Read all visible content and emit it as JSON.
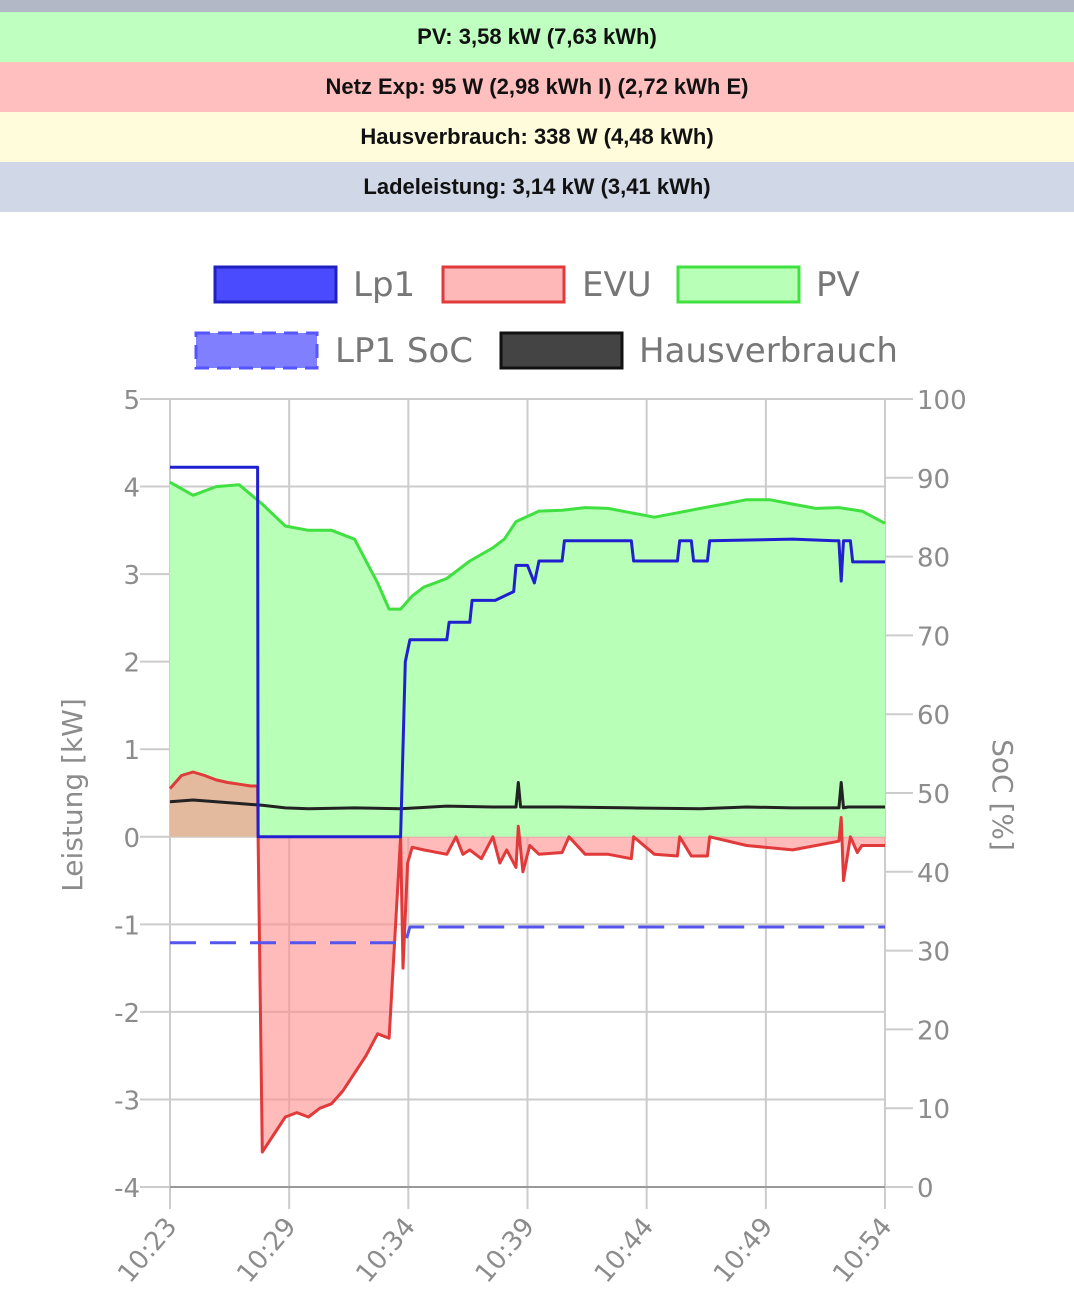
{
  "status": {
    "pv": {
      "text": "PV: 3,58 kW (7,63 kWh)",
      "color": "#bfffbf"
    },
    "grid": {
      "text": "Netz Exp: 95 W (2,98 kWh I) (2,72 kWh E)",
      "color": "#ffbfbf"
    },
    "house": {
      "text": "Hausverbrauch: 338 W (4,48 kWh)",
      "color": "#fffcdb"
    },
    "charge": {
      "text": "Ladeleistung: 3,14 kW (3,41 kWh)",
      "color": "#d0d7e6"
    }
  },
  "legend": {
    "lp1": {
      "label": "Lp1",
      "fill": "#4a4aff",
      "stroke": "#2020c0"
    },
    "evu": {
      "label": "EVU",
      "fill": "#ffb8b8",
      "stroke": "#e03a3a"
    },
    "pv": {
      "label": "PV",
      "fill": "#b8ffb8",
      "stroke": "#40e040"
    },
    "soc": {
      "label": "LP1 SoC",
      "fill": "#8080ff",
      "stroke": "#5555ff"
    },
    "house": {
      "label": "Hausverbrauch",
      "fill": "#444444",
      "stroke": "#111111"
    }
  },
  "chart_data": {
    "type": "line",
    "ylabel": "Leistung [kW]",
    "y2label": "SoC [%]",
    "ylim": [
      -4,
      5
    ],
    "y2lim": [
      0,
      100
    ],
    "yticks": [
      "5",
      "4",
      "3",
      "2",
      "1",
      "0",
      "-1",
      "-2",
      "-3",
      "-4"
    ],
    "y2ticks": [
      "100",
      "90",
      "80",
      "70",
      "60",
      "50",
      "40",
      "30",
      "20",
      "10",
      "0"
    ],
    "xticks": [
      "10:23",
      "10:29",
      "10:34",
      "10:39",
      "10:44",
      "10:49",
      "10:54"
    ],
    "x_range_minutes": [
      0,
      31
    ],
    "grid": true,
    "legend_position": "top",
    "series": [
      {
        "name": "Lp1",
        "axis": "left",
        "color": "#2020d0",
        "fill": false,
        "x": [
          0,
          3.8,
          3.82,
          10.0,
          10.2,
          10.4,
          12.0,
          12.1,
          13.0,
          13.1,
          14.0,
          14.1,
          14.9,
          15.0,
          15.5,
          15.8,
          16.0,
          16.2,
          17.0,
          17.1,
          18.0,
          20.0,
          20.1,
          21.0,
          22.0,
          22.1,
          22.6,
          22.7,
          23.3,
          23.4,
          27.0,
          28.8,
          29.0,
          29.1,
          29.2,
          29.5,
          29.6,
          30.0,
          31.0
        ],
        "y": [
          4.22,
          4.22,
          0.0,
          0.0,
          2.0,
          2.25,
          2.25,
          2.45,
          2.45,
          2.7,
          2.7,
          2.7,
          2.8,
          3.1,
          3.1,
          2.9,
          3.15,
          3.15,
          3.15,
          3.38,
          3.38,
          3.38,
          3.15,
          3.15,
          3.15,
          3.38,
          3.38,
          3.15,
          3.15,
          3.38,
          3.4,
          3.38,
          3.38,
          2.92,
          3.38,
          3.38,
          3.14,
          3.14,
          3.14
        ]
      },
      {
        "name": "EVU",
        "axis": "left",
        "color": "#e03a3a",
        "fill": true,
        "x": [
          0,
          0.5,
          1.0,
          1.5,
          2.0,
          2.5,
          3.0,
          3.5,
          3.8,
          3.82,
          4.0,
          4.5,
          5.0,
          5.5,
          6.0,
          6.5,
          7.0,
          7.5,
          8.0,
          8.5,
          9.0,
          9.5,
          10.0,
          10.1,
          10.3,
          10.5,
          11.0,
          12.0,
          12.4,
          12.7,
          13.0,
          13.5,
          14.0,
          14.3,
          14.6,
          15.0,
          15.1,
          15.3,
          15.5,
          15.6,
          16.0,
          17.0,
          17.3,
          18.0,
          19.0,
          20.0,
          20.1,
          21.0,
          22.0,
          22.1,
          22.6,
          23.3,
          23.4,
          25.0,
          27.0,
          29.0,
          29.1,
          29.2,
          29.5,
          29.8,
          30.0,
          31.0
        ],
        "y": [
          0.55,
          0.7,
          0.74,
          0.7,
          0.65,
          0.62,
          0.6,
          0.58,
          0.58,
          0.0,
          -3.6,
          -3.4,
          -3.2,
          -3.15,
          -3.2,
          -3.1,
          -3.05,
          -2.9,
          -2.7,
          -2.5,
          -2.25,
          -2.3,
          0.0,
          -1.5,
          -0.3,
          -0.12,
          -0.15,
          -0.2,
          0.0,
          -0.2,
          -0.15,
          -0.25,
          0.0,
          -0.3,
          -0.15,
          -0.35,
          0.12,
          -0.4,
          -0.2,
          -0.1,
          -0.2,
          -0.18,
          0.0,
          -0.2,
          -0.2,
          -0.25,
          0.0,
          -0.2,
          -0.22,
          0.0,
          -0.22,
          -0.22,
          0.0,
          -0.1,
          -0.15,
          -0.05,
          0.22,
          -0.5,
          0.0,
          -0.18,
          -0.1,
          -0.1
        ]
      },
      {
        "name": "PV",
        "axis": "left",
        "color": "#40e040",
        "fill": true,
        "x": [
          0,
          1.0,
          2.0,
          3.0,
          4.0,
          5.0,
          6.0,
          7.0,
          8.0,
          9.0,
          9.5,
          10.0,
          10.5,
          11.0,
          12.0,
          13.0,
          14.0,
          14.5,
          15.0,
          16.0,
          17.0,
          18.0,
          19.0,
          20.0,
          21.0,
          22.0,
          23.0,
          24.0,
          25.0,
          26.0,
          27.0,
          28.0,
          29.0,
          30.0,
          31.0
        ],
        "y": [
          4.05,
          3.9,
          4.0,
          4.02,
          3.8,
          3.55,
          3.5,
          3.5,
          3.4,
          2.9,
          2.6,
          2.6,
          2.75,
          2.85,
          2.95,
          3.15,
          3.3,
          3.4,
          3.6,
          3.72,
          3.73,
          3.76,
          3.75,
          3.7,
          3.65,
          3.7,
          3.75,
          3.8,
          3.85,
          3.85,
          3.8,
          3.75,
          3.76,
          3.72,
          3.58
        ]
      },
      {
        "name": "Hausverbrauch",
        "axis": "left",
        "color": "#222222",
        "fill": false,
        "x": [
          0,
          1.0,
          2.0,
          3.0,
          4.0,
          5.0,
          6.0,
          8.0,
          10.0,
          12.0,
          14.0,
          15.0,
          15.1,
          15.2,
          15.4,
          17.0,
          20.0,
          23.0,
          25.0,
          27.0,
          29.0,
          29.1,
          29.2,
          29.4,
          30.0,
          31.0
        ],
        "y": [
          0.4,
          0.42,
          0.4,
          0.38,
          0.36,
          0.33,
          0.32,
          0.33,
          0.32,
          0.35,
          0.34,
          0.34,
          0.62,
          0.34,
          0.34,
          0.34,
          0.33,
          0.32,
          0.34,
          0.33,
          0.33,
          0.62,
          0.33,
          0.34,
          0.34,
          0.34
        ]
      },
      {
        "name": "LP1 SoC",
        "axis": "right",
        "color": "#5555ee",
        "dashed": true,
        "x": [
          0,
          10.2,
          10.4,
          31.0
        ],
        "y": [
          31,
          31,
          33,
          33
        ]
      }
    ]
  }
}
